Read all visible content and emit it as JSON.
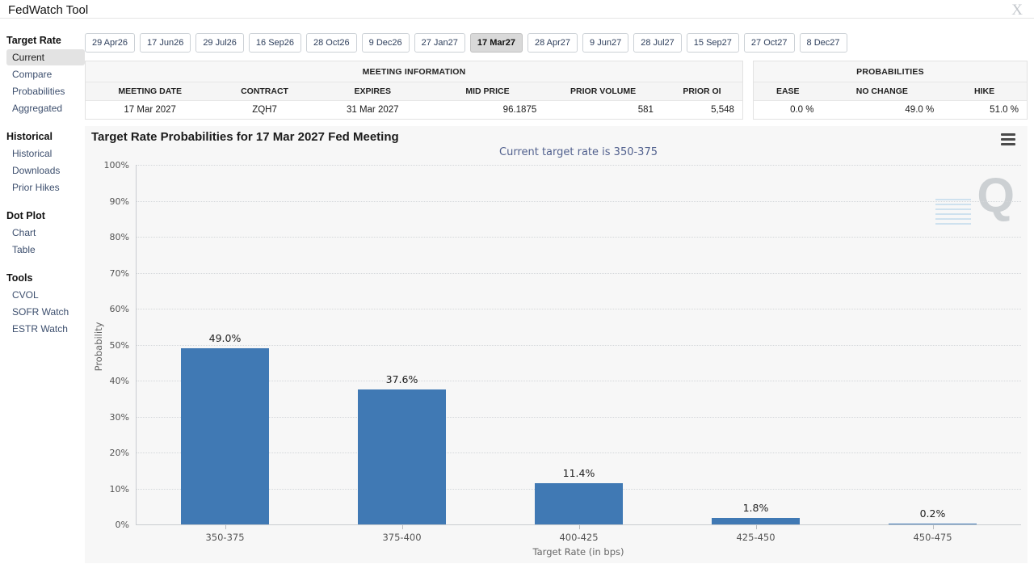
{
  "header": {
    "title": "FedWatch Tool"
  },
  "sidebar": {
    "groups": [
      {
        "label": "Target Rate",
        "items": [
          {
            "label": "Current",
            "selected": true
          },
          {
            "label": "Compare",
            "selected": false
          },
          {
            "label": "Probabilities",
            "selected": false
          },
          {
            "label": "Aggregated",
            "selected": false
          }
        ]
      },
      {
        "label": "Historical",
        "items": [
          {
            "label": "Historical",
            "selected": false
          },
          {
            "label": "Downloads",
            "selected": false
          },
          {
            "label": "Prior Hikes",
            "selected": false
          }
        ]
      },
      {
        "label": "Dot Plot",
        "items": [
          {
            "label": "Chart",
            "selected": false
          },
          {
            "label": "Table",
            "selected": false
          }
        ]
      },
      {
        "label": "Tools",
        "items": [
          {
            "label": "CVOL",
            "selected": false
          },
          {
            "label": "SOFR Watch",
            "selected": false
          },
          {
            "label": "ESTR Watch",
            "selected": false
          }
        ]
      }
    ]
  },
  "tabs": {
    "selected": "17 Mar27",
    "items": [
      "29 Apr26",
      "17 Jun26",
      "29 Jul26",
      "16 Sep26",
      "28 Oct26",
      "9 Dec26",
      "27 Jan27",
      "17 Mar27",
      "28 Apr27",
      "9 Jun27",
      "28 Jul27",
      "15 Sep27",
      "27 Oct27",
      "8 Dec27"
    ]
  },
  "meeting_information": {
    "title": "MEETING INFORMATION",
    "columns": [
      "MEETING DATE",
      "CONTRACT",
      "EXPIRES",
      "MID PRICE",
      "PRIOR VOLUME",
      "PRIOR OI"
    ],
    "row": [
      "17 Mar 2027",
      "ZQH7",
      "31 Mar 2027",
      "96.1875",
      "581",
      "5,548"
    ]
  },
  "probabilities_panel": {
    "title": "PROBABILITIES",
    "columns": [
      "EASE",
      "NO CHANGE",
      "HIKE"
    ],
    "row": [
      "0.0 %",
      "49.0 %",
      "51.0 %"
    ]
  },
  "chart_data": {
    "type": "bar",
    "title": "Target Rate Probabilities for 17 Mar 2027 Fed Meeting",
    "subtitle": "Current target rate is 350-375",
    "categories": [
      "350-375",
      "375-400",
      "400-425",
      "425-450",
      "450-475"
    ],
    "values": [
      49.0,
      37.6,
      11.4,
      1.8,
      0.2
    ],
    "bar_labels": [
      "49.0%",
      "37.6%",
      "11.4%",
      "1.8%",
      "0.2%"
    ],
    "xlabel": "Target Rate (in bps)",
    "ylabel": "Probability",
    "ylim": [
      0,
      100
    ],
    "ytick_step": 10,
    "ytick_suffix": "%",
    "grid": "dotted-horizontal",
    "legend": "none",
    "bar_color": "#4079b4"
  },
  "icons": {
    "close": "X",
    "menu": "hamburger",
    "watermark_letter": "Q"
  },
  "colors": {
    "bar": "#4079b4",
    "subtitle_text": "#52618e",
    "chart_background": "#f7f7f7",
    "selected_tab_background": "#d9d9d9",
    "selected_sidebar_background": "#e3e3e3"
  }
}
